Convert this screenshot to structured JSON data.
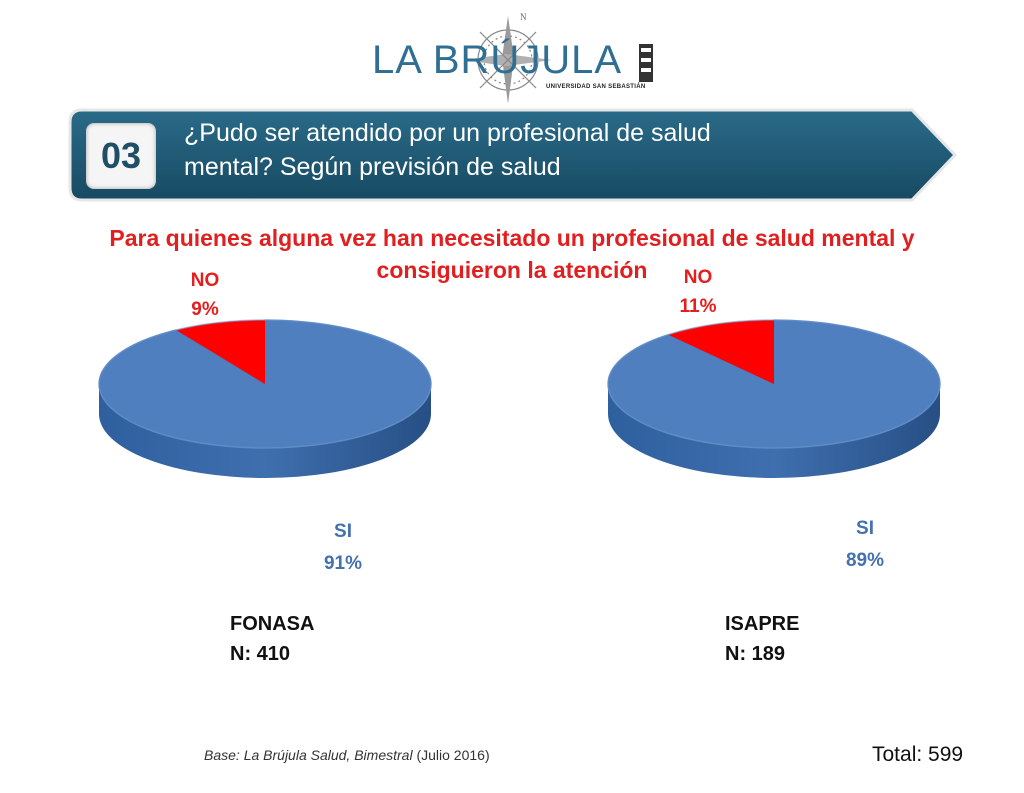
{
  "logo": {
    "wordmark": "LA BRÚJULA",
    "subtitle": "UNIVERSIDAD SAN SEBASTIÁN"
  },
  "banner": {
    "number": "03",
    "question_line1": "¿Pudo ser atendido por un profesional de salud",
    "question_line2": "mental? Según previsión de salud"
  },
  "subtitle_line1": "Para quienes alguna vez han necesitado un profesional de salud mental y",
  "subtitle_line2": "consiguieron la atención",
  "colors": {
    "si": "#4f7fbf",
    "no": "#ff0000",
    "banner": "#1f5a74",
    "title": "#e02020"
  },
  "chart_data": [
    {
      "type": "pie",
      "group": "FONASA",
      "n_label": "N: 410",
      "slices": [
        {
          "label": "SI",
          "value": 91,
          "display": "91%"
        },
        {
          "label": "NO",
          "value": 9,
          "display": "9%"
        }
      ]
    },
    {
      "type": "pie",
      "group": "ISAPRE",
      "n_label": "N: 189",
      "slices": [
        {
          "label": "SI",
          "value": 89,
          "display": "89%"
        },
        {
          "label": "NO",
          "value": 11,
          "display": "11%"
        }
      ]
    }
  ],
  "footer": {
    "source_italic": "Base: La Brújula Salud, Bimestral",
    "source_plain": " (Julio 2016)",
    "total": "Total: 599"
  }
}
